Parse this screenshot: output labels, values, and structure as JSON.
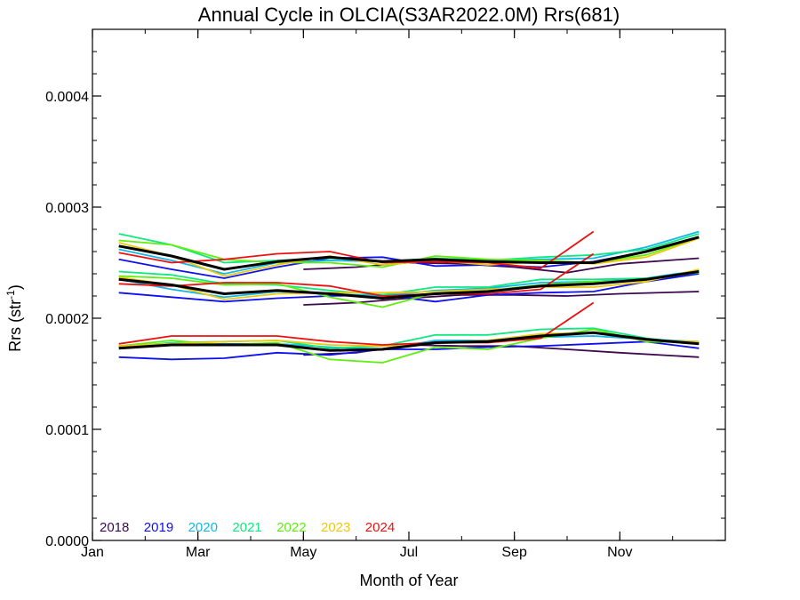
{
  "chart_data": {
    "type": "line",
    "title": "Annual Cycle in OLCIA(S3AR2022.0M) Rrs(681)",
    "xlabel": "Month of Year",
    "ylabel": {
      "base": "Rrs (str",
      "sup": "-1",
      "end": ")"
    },
    "xlim": [
      0,
      12
    ],
    "ylim": [
      0,
      0.00046
    ],
    "xticks": [
      {
        "value": 0,
        "label": "Jan"
      },
      {
        "value": 2,
        "label": "Mar"
      },
      {
        "value": 4,
        "label": "May"
      },
      {
        "value": 6,
        "label": "Jul"
      },
      {
        "value": 8,
        "label": "Sep"
      },
      {
        "value": 10,
        "label": "Nov"
      }
    ],
    "yticks": [
      {
        "value": 0,
        "label": "0.0000"
      },
      {
        "value": 0.0001,
        "label": "0.0001"
      },
      {
        "value": 0.0002,
        "label": "0.0002"
      },
      {
        "value": 0.0003,
        "label": "0.0003"
      },
      {
        "value": 0.0004,
        "label": "0.0004"
      }
    ],
    "grid": false,
    "legend_position": "bottom-left",
    "series": [
      {
        "name": "2018",
        "color": "#3d0a4f",
        "lines": [
          {
            "x": [
              4.0,
              5.0,
              6.0,
              7.0,
              8.0,
              9.0,
              10.0,
              11.5
            ],
            "y": [
              0.000244,
              0.000246,
              0.00025,
              0.000249,
              0.000246,
              0.000241,
              0.000249,
              0.000254
            ]
          },
          {
            "x": [
              4.0,
              5.0,
              6.0,
              7.0,
              8.0,
              9.0,
              10.0,
              11.5
            ],
            "y": [
              0.000212,
              0.000214,
              0.000218,
              0.000221,
              0.000221,
              0.00022,
              0.000222,
              0.000224
            ]
          },
          {
            "x": [
              4.0,
              5.0,
              6.0,
              7.0,
              8.0,
              9.0,
              10.0,
              11.5
            ],
            "y": [
              0.000167,
              0.000169,
              0.000176,
              0.000175,
              0.000175,
              0.000172,
              0.000169,
              0.000165
            ]
          }
        ]
      },
      {
        "name": "2019",
        "color": "#1010ee",
        "lines": [
          {
            "x": [
              0.5,
              1.5,
              2.5,
              3.5,
              4.5,
              5.5,
              6.5,
              7.5,
              8.5,
              9.5,
              10.5,
              11.5
            ],
            "y": [
              0.000253,
              0.000244,
              0.000236,
              0.000246,
              0.000254,
              0.000255,
              0.000247,
              0.000248,
              0.000246,
              0.000251,
              0.00026,
              0.000272
            ]
          },
          {
            "x": [
              0.5,
              1.5,
              2.5,
              3.5,
              4.5,
              5.5,
              6.5,
              7.5,
              8.5,
              9.5,
              10.5,
              11.5
            ],
            "y": [
              0.000223,
              0.000219,
              0.000215,
              0.000218,
              0.00022,
              0.000221,
              0.000215,
              0.000221,
              0.000223,
              0.000224,
              0.000233,
              0.00024
            ]
          },
          {
            "x": [
              0.5,
              1.5,
              2.5,
              3.5,
              4.5,
              5.5,
              6.5,
              7.5,
              8.5,
              9.5,
              10.5,
              11.5
            ],
            "y": [
              0.000165,
              0.000163,
              0.000164,
              0.000169,
              0.000167,
              0.000172,
              0.000172,
              0.000174,
              0.000175,
              0.000177,
              0.000179,
              0.000173
            ]
          }
        ]
      },
      {
        "name": "2020",
        "color": "#10b8e8",
        "lines": [
          {
            "x": [
              0.5,
              1.5,
              2.5,
              3.5,
              4.5,
              5.5,
              6.5,
              7.5,
              8.5,
              9.5,
              10.5,
              11.5
            ],
            "y": [
              0.000262,
              0.000252,
              0.00024,
              0.00025,
              0.000252,
              0.000251,
              0.000253,
              0.000252,
              0.000253,
              0.000254,
              0.000264,
              0.000278
            ]
          },
          {
            "x": [
              0.5,
              1.5,
              2.5,
              3.5,
              4.5,
              5.5,
              6.5,
              7.5,
              8.5,
              9.5,
              10.5,
              11.5
            ],
            "y": [
              0.000235,
              0.000226,
              0.000219,
              0.000224,
              0.000222,
              0.00022,
              0.000225,
              0.000227,
              0.000232,
              0.000233,
              0.000236,
              0.000243
            ]
          },
          {
            "x": [
              0.5,
              1.5,
              2.5,
              3.5,
              4.5,
              5.5,
              6.5,
              7.5,
              8.5,
              9.5,
              10.5,
              11.5
            ],
            "y": [
              0.000175,
              0.000176,
              0.000177,
              0.000177,
              0.000174,
              0.000172,
              0.00018,
              0.00018,
              0.000183,
              0.000184,
              0.000181,
              0.000179
            ]
          }
        ]
      },
      {
        "name": "2021",
        "color": "#10e880",
        "lines": [
          {
            "x": [
              0.5,
              1.5,
              2.5,
              3.5,
              4.5,
              5.5,
              6.5,
              7.5,
              8.5,
              9.5,
              10.5,
              11.5
            ],
            "y": [
              0.000276,
              0.000266,
              0.00025,
              0.000252,
              0.000254,
              0.000251,
              0.000254,
              0.000252,
              0.000255,
              0.000257,
              0.000262,
              0.000276
            ]
          },
          {
            "x": [
              0.5,
              1.5,
              2.5,
              3.5,
              4.5,
              5.5,
              6.5,
              7.5,
              8.5,
              9.5,
              10.5,
              11.5
            ],
            "y": [
              0.000242,
              0.000239,
              0.000231,
              0.00023,
              0.000225,
              0.000221,
              0.000228,
              0.000228,
              0.000235,
              0.000235,
              0.000236,
              0.000241
            ]
          },
          {
            "x": [
              0.5,
              1.5,
              2.5,
              3.5,
              4.5,
              5.5,
              6.5,
              7.5,
              8.5,
              9.5,
              10.5,
              11.5
            ],
            "y": [
              0.000174,
              0.000178,
              0.000179,
              0.00018,
              0.000173,
              0.000175,
              0.000185,
              0.000185,
              0.00019,
              0.000191,
              0.000182,
              0.000177
            ]
          }
        ]
      },
      {
        "name": "2022",
        "color": "#60ee10",
        "lines": [
          {
            "x": [
              0.5,
              1.5,
              2.5,
              3.5,
              4.5,
              5.5,
              6.5,
              7.5,
              8.5,
              9.5,
              10.5,
              11.5
            ],
            "y": [
              0.00027,
              0.000266,
              0.000253,
              0.00025,
              0.00025,
              0.000246,
              0.000256,
              0.000253,
              0.000252,
              0.00025,
              0.000257,
              0.000273
            ]
          },
          {
            "x": [
              0.5,
              1.5,
              2.5,
              3.5,
              4.5,
              5.5,
              6.5,
              7.5,
              8.5,
              9.5,
              10.5,
              11.5
            ],
            "y": [
              0.000238,
              0.000236,
              0.00023,
              0.000231,
              0.000219,
              0.00021,
              0.000223,
              0.000225,
              0.00023,
              0.000233,
              0.000234,
              0.000242
            ]
          },
          {
            "x": [
              0.5,
              1.5,
              2.5,
              3.5,
              4.5,
              5.5,
              6.5,
              7.5,
              8.5,
              9.5,
              10.5,
              11.5
            ],
            "y": [
              0.000175,
              0.00018,
              0.000176,
              0.000178,
              0.000163,
              0.00016,
              0.000174,
              0.000172,
              0.000182,
              0.00019,
              0.000179,
              0.000178
            ]
          }
        ]
      },
      {
        "name": "2023",
        "color": "#eec810",
        "lines": [
          {
            "x": [
              0.5,
              1.5,
              2.5,
              3.5,
              4.5,
              5.5,
              6.5,
              7.5,
              8.5,
              9.5,
              10.5,
              11.5
            ],
            "y": [
              0.000268,
              0.000256,
              0.000238,
              0.000248,
              0.000256,
              0.000248,
              0.000252,
              0.000248,
              0.000251,
              0.000249,
              0.000255,
              0.000272
            ]
          },
          {
            "x": [
              0.5,
              1.5,
              2.5,
              3.5,
              4.5,
              5.5,
              6.5,
              7.5,
              8.5,
              9.5,
              10.5,
              11.5
            ],
            "y": [
              0.000237,
              0.00023,
              0.000217,
              0.000222,
              0.000223,
              0.000223,
              0.000224,
              0.000226,
              0.000228,
              0.000228,
              0.000233,
              0.000244
            ]
          },
          {
            "x": [
              0.5,
              1.5,
              2.5,
              3.5,
              4.5,
              5.5,
              6.5,
              7.5,
              8.5,
              9.5,
              10.5,
              11.5
            ],
            "y": [
              0.000175,
              0.000177,
              0.000179,
              0.00018,
              0.000176,
              0.000175,
              0.000178,
              0.00018,
              0.000186,
              0.000187,
              0.00018,
              0.000179
            ]
          }
        ]
      },
      {
        "name": "2024",
        "color": "#ee1010",
        "lines": [
          {
            "x": [
              0.5,
              1.5,
              2.5,
              3.5,
              4.5,
              5.5,
              6.5,
              7.5,
              8.5,
              9.5
            ],
            "y": [
              0.000259,
              0.00025,
              0.000253,
              0.000258,
              0.00026,
              0.00025,
              0.000251,
              0.00025,
              0.000245,
              0.000278
            ]
          },
          {
            "x": [
              0.5,
              1.5,
              2.5,
              3.5,
              4.5,
              5.5,
              6.5,
              7.5,
              8.5,
              9.5
            ],
            "y": [
              0.000231,
              0.000229,
              0.000232,
              0.000232,
              0.000229,
              0.00022,
              0.000222,
              0.000222,
              0.000226,
              0.000258
            ]
          },
          {
            "x": [
              0.5,
              1.5,
              2.5,
              3.5,
              4.5,
              5.5,
              6.5,
              7.5,
              8.5,
              9.5
            ],
            "y": [
              0.000177,
              0.000184,
              0.000184,
              0.000184,
              0.000179,
              0.000176,
              0.000178,
              0.000178,
              0.000182,
              0.000214
            ]
          }
        ]
      },
      {
        "color": "#000000",
        "lines": [
          {
            "x": [
              0.5,
              1.5,
              2.5,
              3.5,
              4.5,
              5.5,
              6.5,
              7.5,
              8.5,
              9.5,
              10.5,
              11.5
            ],
            "y": [
              0.000265,
              0.000256,
              0.000244,
              0.000251,
              0.000255,
              0.000251,
              0.000253,
              0.000251,
              0.00025,
              0.00025,
              0.00026,
              0.000273
            ]
          },
          {
            "x": [
              0.5,
              1.5,
              2.5,
              3.5,
              4.5,
              5.5,
              6.5,
              7.5,
              8.5,
              9.5,
              10.5,
              11.5
            ],
            "y": [
              0.000235,
              0.00023,
              0.000222,
              0.000225,
              0.000222,
              0.000218,
              0.000222,
              0.000224,
              0.000229,
              0.000231,
              0.000235,
              0.000242
            ]
          },
          {
            "x": [
              0.5,
              1.5,
              2.5,
              3.5,
              4.5,
              5.5,
              6.5,
              7.5,
              8.5,
              9.5,
              10.5,
              11.5
            ],
            "y": [
              0.000173,
              0.000176,
              0.000176,
              0.000176,
              0.000171,
              0.000172,
              0.000178,
              0.000179,
              0.000184,
              0.000187,
              0.000181,
              0.000177
            ]
          }
        ]
      }
    ]
  }
}
